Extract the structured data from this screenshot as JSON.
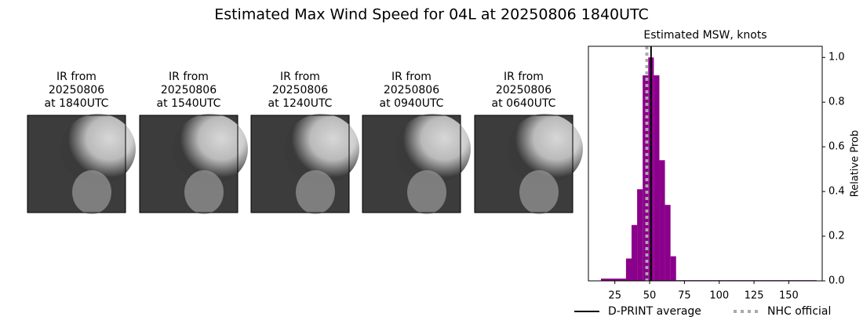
{
  "title": "Estimated Max Wind Speed for 04L at 20250806 1840UTC",
  "panels": [
    {
      "lines": [
        "IR from",
        "20250806",
        "at 1840UTC"
      ]
    },
    {
      "lines": [
        "IR from",
        "20250806",
        "at 1540UTC"
      ]
    },
    {
      "lines": [
        "IR from",
        "20250806",
        "at 1240UTC"
      ]
    },
    {
      "lines": [
        "IR from",
        "20250806",
        "at 0940UTC"
      ]
    },
    {
      "lines": [
        "IR from",
        "20250806",
        "at 0640UTC"
      ]
    }
  ],
  "chart_data": {
    "type": "histogram",
    "title": "Estimated MSW, knots",
    "y_label": "Relative Prob",
    "bins": [
      15,
      33,
      37,
      41,
      45,
      49,
      53,
      57,
      61,
      65,
      69,
      170
    ],
    "values": [
      0.01,
      0.1,
      0.25,
      0.41,
      0.92,
      1.0,
      0.92,
      0.54,
      0.34,
      0.11,
      0.003
    ],
    "color": "#8b008b",
    "xlim": [
      6,
      174
    ],
    "xticks": [
      25,
      50,
      75,
      100,
      125,
      150
    ],
    "ylim": [
      0,
      1.05
    ],
    "yticks": [
      {
        "value": 0,
        "label": "0.0"
      },
      0.2,
      0.4,
      0.6,
      0.8,
      {
        "value": 1,
        "label": "1.0"
      }
    ],
    "lines": [
      {
        "name": "D-PRINT average",
        "value": 51,
        "color": "#000000",
        "style": "solid"
      },
      {
        "name": "NHC official",
        "value": 48,
        "color": "#aaaaaa",
        "style": "dotted"
      }
    ]
  }
}
